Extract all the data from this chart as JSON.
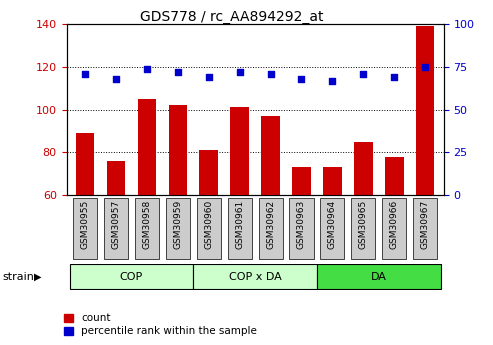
{
  "title": "GDS778 / rc_AA894292_at",
  "samples": [
    "GSM30955",
    "GSM30957",
    "GSM30958",
    "GSM30959",
    "GSM30960",
    "GSM30961",
    "GSM30962",
    "GSM30963",
    "GSM30964",
    "GSM30965",
    "GSM30966",
    "GSM30967"
  ],
  "counts": [
    89,
    76,
    105,
    102,
    81,
    101,
    97,
    73,
    73,
    85,
    78,
    139
  ],
  "percentiles": [
    71,
    68,
    74,
    72,
    69,
    72,
    71,
    68,
    67,
    71,
    69,
    75
  ],
  "ylim_left": [
    60,
    140
  ],
  "ylim_right": [
    0,
    100
  ],
  "yticks_left": [
    60,
    80,
    100,
    120,
    140
  ],
  "yticks_right": [
    0,
    25,
    50,
    75,
    100
  ],
  "bar_color": "#cc0000",
  "dot_color": "#0000cc",
  "groups": [
    {
      "label": "COP",
      "start": 0,
      "end": 4,
      "color": "#bbffbb"
    },
    {
      "label": "COP x DA",
      "start": 4,
      "end": 8,
      "color": "#bbffbb"
    },
    {
      "label": "DA",
      "start": 8,
      "end": 12,
      "color": "#44cc44"
    }
  ],
  "legend_count_label": "count",
  "legend_percentile_label": "percentile rank within the sample",
  "strain_label": "strain",
  "tick_bg_color": "#cccccc",
  "group_border_color": "#000000",
  "grid_color": "#000000",
  "axis_color": "#000000"
}
